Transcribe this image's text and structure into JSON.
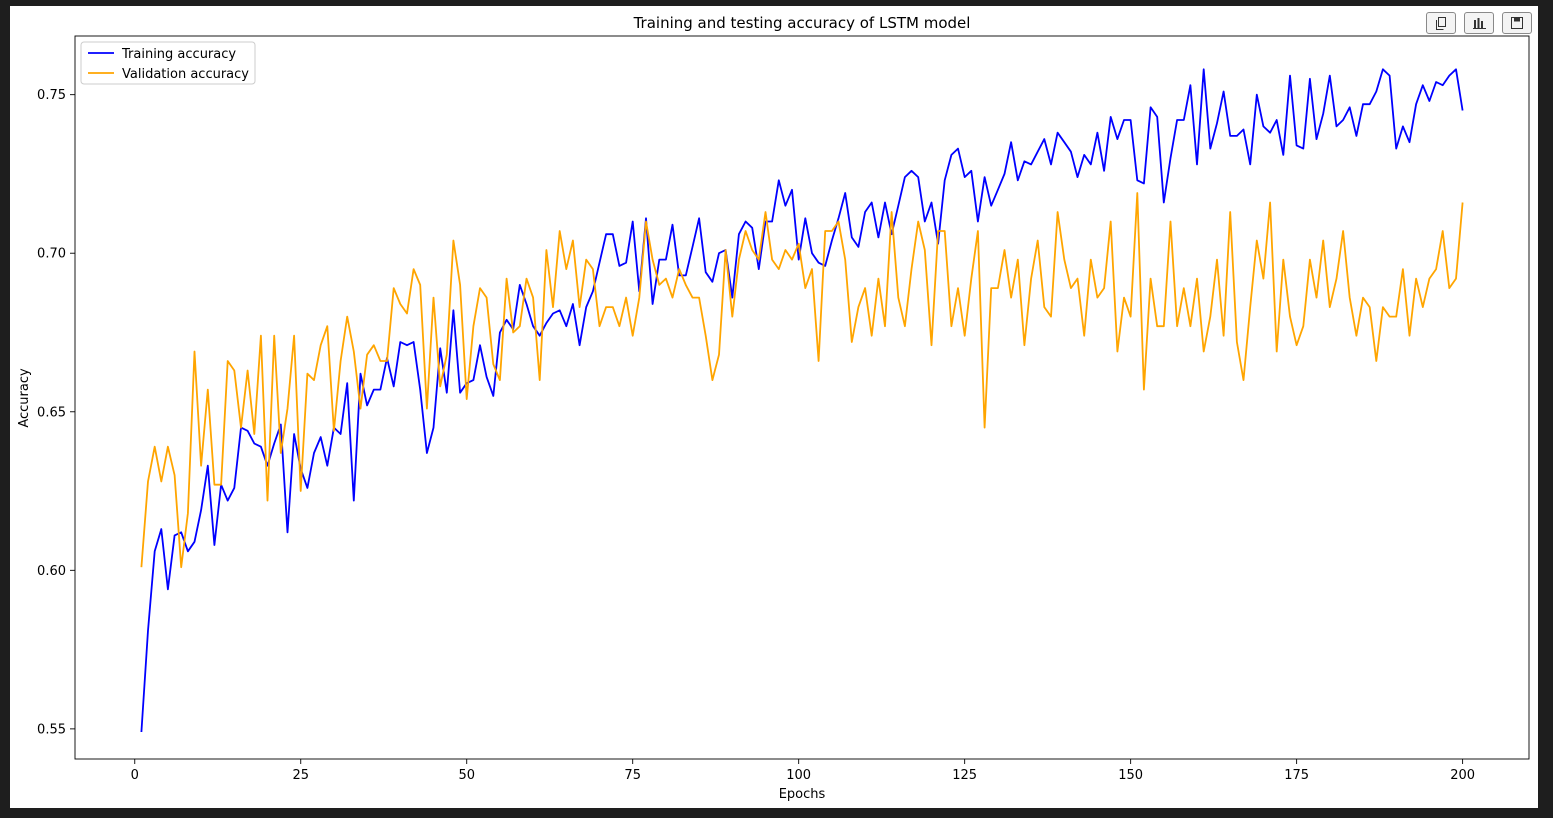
{
  "toolbar": {
    "buttons": [
      {
        "icon": "copy-icon"
      },
      {
        "icon": "bar-chart-icon"
      },
      {
        "icon": "save-icon"
      }
    ]
  },
  "chart_data": {
    "type": "line",
    "title": "Training and testing accuracy of LSTM model",
    "xlabel": "Epochs",
    "ylabel": "Accuracy",
    "xlim": [
      -9,
      210
    ],
    "ylim": [
      0.5405,
      0.7685
    ],
    "xticks": [
      0,
      25,
      50,
      75,
      100,
      125,
      150,
      175,
      200
    ],
    "yticks": [
      0.55,
      0.6,
      0.65,
      0.7,
      0.75
    ],
    "ytick_labels": [
      "0.55",
      "0.60",
      "0.65",
      "0.70",
      "0.75"
    ],
    "grid": false,
    "legend_position": "top-left",
    "series": [
      {
        "name": "Training accuracy",
        "color": "#0000ff",
        "values": [
          0.549,
          0.581,
          0.606,
          0.613,
          0.594,
          0.611,
          0.612,
          0.606,
          0.609,
          0.619,
          0.633,
          0.608,
          0.627,
          0.622,
          0.626,
          0.645,
          0.644,
          0.64,
          0.639,
          0.633,
          0.64,
          0.646,
          0.612,
          0.643,
          0.632,
          0.626,
          0.637,
          0.642,
          0.633,
          0.645,
          0.643,
          0.659,
          0.622,
          0.662,
          0.652,
          0.657,
          0.657,
          0.667,
          0.658,
          0.672,
          0.671,
          0.672,
          0.657,
          0.637,
          0.645,
          0.67,
          0.656,
          0.682,
          0.656,
          0.659,
          0.66,
          0.671,
          0.661,
          0.655,
          0.675,
          0.679,
          0.676,
          0.69,
          0.684,
          0.677,
          0.674,
          0.678,
          0.681,
          0.682,
          0.677,
          0.684,
          0.671,
          0.683,
          0.688,
          0.697,
          0.706,
          0.706,
          0.696,
          0.697,
          0.71,
          0.688,
          0.711,
          0.684,
          0.698,
          0.698,
          0.709,
          0.693,
          0.693,
          0.702,
          0.711,
          0.694,
          0.691,
          0.7,
          0.701,
          0.686,
          0.706,
          0.71,
          0.708,
          0.695,
          0.71,
          0.71,
          0.723,
          0.715,
          0.72,
          0.698,
          0.711,
          0.7,
          0.697,
          0.696,
          0.704,
          0.711,
          0.719,
          0.705,
          0.702,
          0.713,
          0.716,
          0.705,
          0.716,
          0.706,
          0.715,
          0.724,
          0.726,
          0.724,
          0.71,
          0.716,
          0.703,
          0.723,
          0.731,
          0.733,
          0.724,
          0.726,
          0.71,
          0.724,
          0.715,
          0.72,
          0.725,
          0.735,
          0.723,
          0.729,
          0.728,
          0.732,
          0.736,
          0.728,
          0.738,
          0.735,
          0.732,
          0.724,
          0.731,
          0.728,
          0.738,
          0.726,
          0.743,
          0.736,
          0.742,
          0.742,
          0.723,
          0.722,
          0.746,
          0.743,
          0.716,
          0.73,
          0.742,
          0.742,
          0.753,
          0.728,
          0.758,
          0.733,
          0.741,
          0.751,
          0.737,
          0.737,
          0.739,
          0.728,
          0.75,
          0.74,
          0.738,
          0.742,
          0.731,
          0.756,
          0.734,
          0.733,
          0.755,
          0.736,
          0.744,
          0.756,
          0.74,
          0.742,
          0.746,
          0.737,
          0.747,
          0.747,
          0.751,
          0.758,
          0.756,
          0.733,
          0.74,
          0.735,
          0.747,
          0.753,
          0.748,
          0.754,
          0.753,
          0.756,
          0.758,
          0.745
        ]
      },
      {
        "name": "Validation accuracy",
        "color": "#ffa500",
        "values": [
          0.601,
          0.628,
          0.639,
          0.628,
          0.639,
          0.63,
          0.601,
          0.618,
          0.669,
          0.633,
          0.657,
          0.627,
          0.627,
          0.666,
          0.663,
          0.645,
          0.663,
          0.643,
          0.674,
          0.622,
          0.674,
          0.637,
          0.651,
          0.674,
          0.625,
          0.662,
          0.66,
          0.671,
          0.677,
          0.644,
          0.666,
          0.68,
          0.669,
          0.651,
          0.668,
          0.671,
          0.666,
          0.666,
          0.689,
          0.684,
          0.681,
          0.695,
          0.69,
          0.651,
          0.686,
          0.658,
          0.668,
          0.704,
          0.69,
          0.654,
          0.677,
          0.689,
          0.686,
          0.665,
          0.66,
          0.692,
          0.675,
          0.677,
          0.692,
          0.686,
          0.66,
          0.701,
          0.683,
          0.707,
          0.695,
          0.704,
          0.683,
          0.698,
          0.695,
          0.677,
          0.683,
          0.683,
          0.677,
          0.686,
          0.674,
          0.686,
          0.71,
          0.698,
          0.69,
          0.692,
          0.686,
          0.695,
          0.69,
          0.686,
          0.686,
          0.674,
          0.66,
          0.668,
          0.701,
          0.68,
          0.698,
          0.707,
          0.701,
          0.698,
          0.713,
          0.698,
          0.695,
          0.701,
          0.698,
          0.703,
          0.689,
          0.695,
          0.666,
          0.707,
          0.707,
          0.71,
          0.698,
          0.672,
          0.683,
          0.689,
          0.674,
          0.692,
          0.677,
          0.713,
          0.686,
          0.677,
          0.695,
          0.71,
          0.701,
          0.671,
          0.707,
          0.707,
          0.677,
          0.689,
          0.674,
          0.692,
          0.707,
          0.645,
          0.689,
          0.689,
          0.701,
          0.686,
          0.698,
          0.671,
          0.692,
          0.704,
          0.683,
          0.68,
          0.713,
          0.698,
          0.689,
          0.692,
          0.674,
          0.698,
          0.686,
          0.689,
          0.71,
          0.669,
          0.686,
          0.68,
          0.719,
          0.657,
          0.692,
          0.677,
          0.677,
          0.71,
          0.677,
          0.689,
          0.677,
          0.692,
          0.669,
          0.68,
          0.698,
          0.674,
          0.713,
          0.672,
          0.66,
          0.683,
          0.704,
          0.692,
          0.716,
          0.669,
          0.698,
          0.68,
          0.671,
          0.677,
          0.698,
          0.686,
          0.704,
          0.683,
          0.692,
          0.707,
          0.686,
          0.674,
          0.686,
          0.683,
          0.666,
          0.683,
          0.68,
          0.68,
          0.695,
          0.674,
          0.692,
          0.683,
          0.692,
          0.695,
          0.707,
          0.689,
          0.692,
          0.716
        ]
      }
    ]
  }
}
